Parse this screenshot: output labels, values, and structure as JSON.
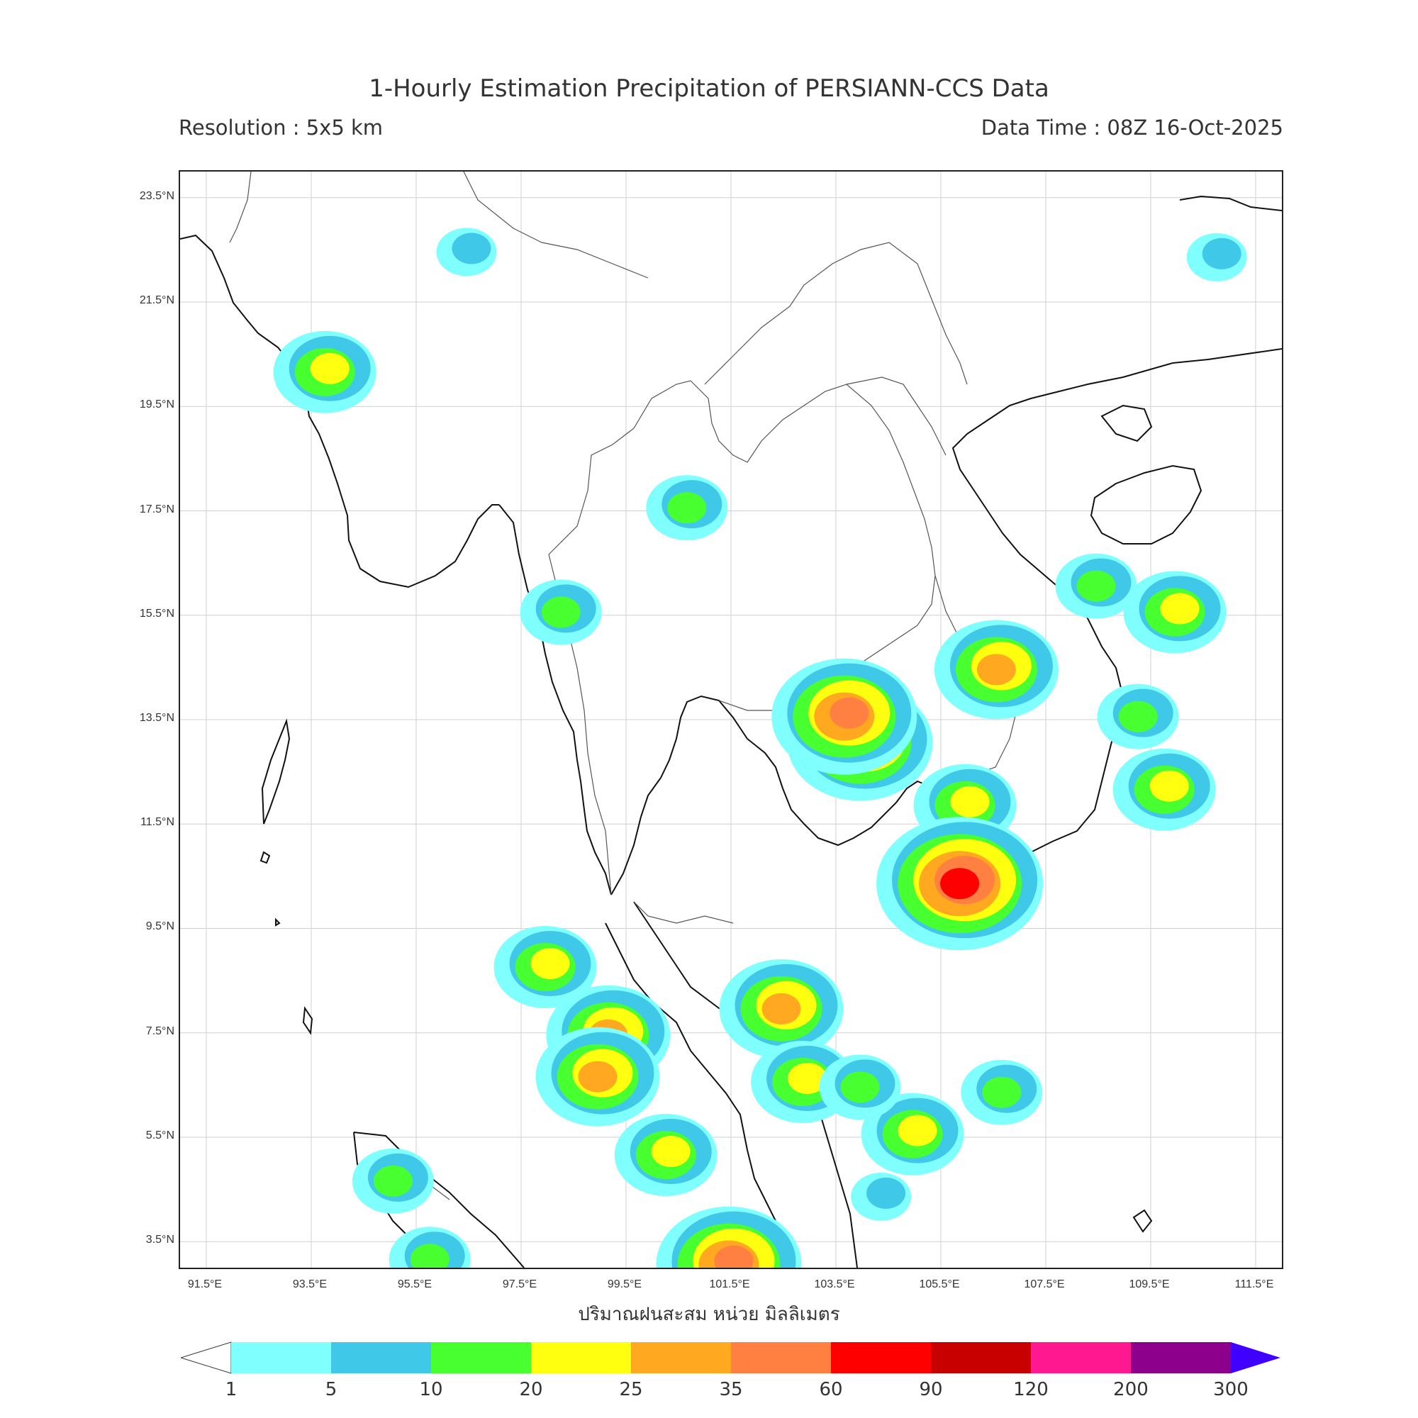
{
  "header": {
    "title": "1-Hourly Estimation Precipitation of PERSIANN-CCS Data",
    "resolution": "Resolution : 5x5 km",
    "data_time": "Data Time : 08Z 16-Oct-2025"
  },
  "axes": {
    "lat_ticks": [
      "23.5°N",
      "21.5°N",
      "19.5°N",
      "17.5°N",
      "15.5°N",
      "13.5°N",
      "11.5°N",
      "9.5°N",
      "7.5°N",
      "5.5°N",
      "3.5°N"
    ],
    "lon_ticks": [
      "91.5°E",
      "93.5°E",
      "95.5°E",
      "97.5°E",
      "99.5°E",
      "101.5°E",
      "103.5°E",
      "105.5°E",
      "107.5°E",
      "109.5°E",
      "111.5°E"
    ],
    "xlabel": "ปริมาณฝนสะสม หน่วย มิลลิเมตร"
  },
  "colorbar": {
    "labels": [
      "1",
      "5",
      "10",
      "20",
      "25",
      "35",
      "60",
      "90",
      "120",
      "200",
      "300"
    ],
    "colors": [
      "#80ffff",
      "#40c8e8",
      "#48ff30",
      "#ffff10",
      "#ffa820",
      "#ff8040",
      "#ff0000",
      "#c80000",
      "#ff1890",
      "#8c008c",
      "#4000ff"
    ]
  },
  "map": {
    "extent_lon": [
      91.0,
      112.0
    ],
    "extent_lat": [
      3.0,
      24.0
    ],
    "rain_cells": [
      {
        "lon": 106.6,
        "lat": 14.5,
        "level": 4
      },
      {
        "lon": 104.0,
        "lat": 13.1,
        "level": 5
      },
      {
        "lon": 103.7,
        "lat": 13.6,
        "level": 5
      },
      {
        "lon": 106.0,
        "lat": 11.9,
        "level": 3
      },
      {
        "lon": 105.9,
        "lat": 10.4,
        "level": 6
      },
      {
        "lon": 108.5,
        "lat": 16.1,
        "level": 2
      },
      {
        "lon": 109.3,
        "lat": 13.6,
        "level": 2
      },
      {
        "lon": 110.0,
        "lat": 15.6,
        "level": 3
      },
      {
        "lon": 98.0,
        "lat": 8.8,
        "level": 3
      },
      {
        "lon": 99.2,
        "lat": 7.5,
        "level": 4
      },
      {
        "lon": 99.0,
        "lat": 6.7,
        "level": 4
      },
      {
        "lon": 102.5,
        "lat": 8.0,
        "level": 4
      },
      {
        "lon": 102.9,
        "lat": 6.6,
        "level": 3
      },
      {
        "lon": 100.3,
        "lat": 5.2,
        "level": 3
      },
      {
        "lon": 101.5,
        "lat": 3.1,
        "level": 5
      },
      {
        "lon": 95.8,
        "lat": 3.2,
        "level": 2
      },
      {
        "lon": 100.7,
        "lat": 17.6,
        "level": 2
      },
      {
        "lon": 98.3,
        "lat": 15.6,
        "level": 2
      },
      {
        "lon": 93.8,
        "lat": 20.2,
        "level": 3
      },
      {
        "lon": 96.5,
        "lat": 22.5,
        "level": 1
      },
      {
        "lon": 105.0,
        "lat": 5.6,
        "level": 3
      },
      {
        "lon": 106.7,
        "lat": 6.4,
        "level": 2
      },
      {
        "lon": 109.8,
        "lat": 12.2,
        "level": 3
      },
      {
        "lon": 110.8,
        "lat": 22.4,
        "level": 1
      },
      {
        "lon": 104.4,
        "lat": 4.4,
        "level": 1
      },
      {
        "lon": 95.1,
        "lat": 4.7,
        "level": 2
      },
      {
        "lon": 104.0,
        "lat": 6.5,
        "level": 2
      }
    ]
  }
}
